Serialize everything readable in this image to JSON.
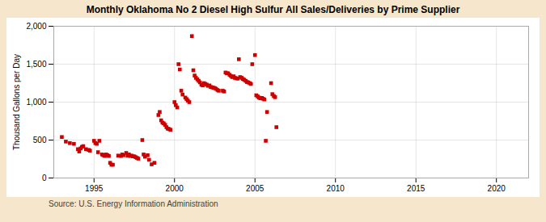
{
  "chart_data": {
    "type": "scatter",
    "title": "Monthly Oklahoma No 2 Diesel High Sulfur All Sales/Deliveries by Prime Supplier",
    "y_label": "Thousand Gallons per Day",
    "annotations": [
      "Source: U.S. Energy Information Administration"
    ],
    "color": "#cc0000",
    "marker": "square",
    "grid": true,
    "xlim": [
      1992.5,
      2022
    ],
    "ylim": [
      0,
      2000
    ],
    "xticks": [
      1995,
      2000,
      2005,
      2010,
      2015,
      2020
    ],
    "yticks": [
      0,
      500,
      {
        "value": 1000,
        "label": "1,000"
      },
      {
        "value": 1500,
        "label": "1,500"
      },
      {
        "value": 2000,
        "label": "2,000"
      }
    ],
    "x": [
      1993.0,
      1993.25,
      1993.5,
      1993.75,
      1994.0,
      1994.08,
      1994.17,
      1994.25,
      1994.33,
      1994.5,
      1994.67,
      1994.75,
      1995.0,
      1995.08,
      1995.17,
      1995.25,
      1995.33,
      1995.5,
      1995.58,
      1995.67,
      1995.75,
      1995.83,
      1995.92,
      1996.0,
      1996.08,
      1996.17,
      1996.5,
      1996.67,
      1996.75,
      1996.83,
      1997.0,
      1997.08,
      1997.17,
      1997.25,
      1997.33,
      1997.42,
      1997.5,
      1997.58,
      1997.67,
      1997.75,
      1998.0,
      1998.08,
      1998.17,
      1998.33,
      1998.42,
      1998.58,
      1998.75,
      1999.0,
      1999.08,
      1999.17,
      1999.25,
      1999.33,
      1999.42,
      1999.5,
      1999.58,
      1999.67,
      1999.75,
      2000.0,
      2000.08,
      2000.17,
      2000.25,
      2000.33,
      2000.42,
      2000.5,
      2000.67,
      2000.75,
      2000.83,
      2000.92,
      2001.08,
      2001.17,
      2001.25,
      2001.33,
      2001.42,
      2001.5,
      2001.58,
      2001.67,
      2001.75,
      2001.83,
      2001.92,
      2002.0,
      2002.08,
      2002.17,
      2002.25,
      2002.33,
      2002.42,
      2002.5,
      2002.58,
      2002.67,
      2002.75,
      2003.0,
      2003.08,
      2003.17,
      2003.25,
      2003.33,
      2003.42,
      2003.5,
      2003.58,
      2003.67,
      2003.75,
      2003.83,
      2003.92,
      2004.0,
      2004.08,
      2004.17,
      2004.25,
      2004.33,
      2004.42,
      2004.5,
      2004.58,
      2004.67,
      2004.75,
      2004.83,
      2005.0,
      2005.08,
      2005.17,
      2005.25,
      2005.33,
      2005.42,
      2005.5,
      2005.58,
      2005.67,
      2005.75,
      2006.0,
      2006.08,
      2006.17,
      2006.25,
      2006.33
    ],
    "values": [
      540,
      480,
      460,
      450,
      380,
      350,
      390,
      410,
      420,
      380,
      370,
      360,
      490,
      460,
      450,
      340,
      490,
      310,
      300,
      290,
      310,
      300,
      290,
      200,
      175,
      175,
      295,
      290,
      310,
      300,
      330,
      295,
      310,
      290,
      295,
      285,
      285,
      275,
      265,
      255,
      500,
      310,
      280,
      300,
      240,
      180,
      200,
      830,
      870,
      760,
      730,
      720,
      700,
      670,
      650,
      645,
      635,
      1000,
      960,
      930,
      1500,
      1430,
      1150,
      1100,
      1060,
      1040,
      1020,
      1000,
      1870,
      1420,
      1350,
      1320,
      1300,
      1280,
      1260,
      1230,
      1220,
      1250,
      1240,
      1230,
      1215,
      1220,
      1200,
      1195,
      1190,
      1185,
      1175,
      1160,
      1150,
      1150,
      1140,
      1390,
      1380,
      1380,
      1360,
      1345,
      1330,
      1340,
      1320,
      1315,
      1310,
      1565,
      1330,
      1320,
      1305,
      1295,
      1280,
      1265,
      1260,
      1250,
      1240,
      1500,
      1620,
      1090,
      1075,
      1060,
      1050,
      1055,
      1045,
      1035,
      490,
      870,
      1250,
      1105,
      1080,
      1065,
      670
    ]
  }
}
